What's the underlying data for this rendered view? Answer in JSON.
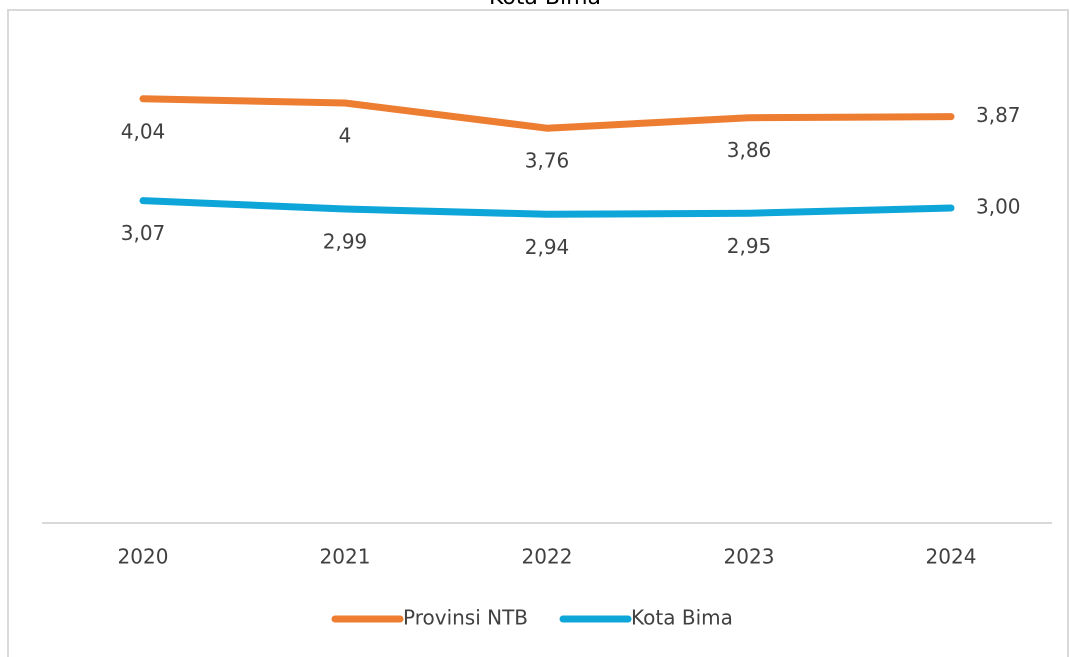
{
  "chart_data": {
    "type": "line",
    "title": "Kota Bima",
    "categories": [
      "2020",
      "2021",
      "2022",
      "2023",
      "2024"
    ],
    "series": [
      {
        "name": "Provinsi NTB",
        "color": "#ed7d31",
        "values": [
          4.04,
          4,
          3.76,
          3.86,
          3.87
        ],
        "value_labels": [
          "4,04",
          "4",
          "3,76",
          "3,86",
          "3,87"
        ]
      },
      {
        "name": "Kota Bima",
        "color": "#0ea5d8",
        "values": [
          3.07,
          2.99,
          2.94,
          2.95,
          3.0
        ],
        "value_labels": [
          "3,07",
          "2,99",
          "2,94",
          "2,95",
          "3,00"
        ]
      }
    ],
    "ylim": [
      0,
      5
    ],
    "legend": "bottom"
  }
}
